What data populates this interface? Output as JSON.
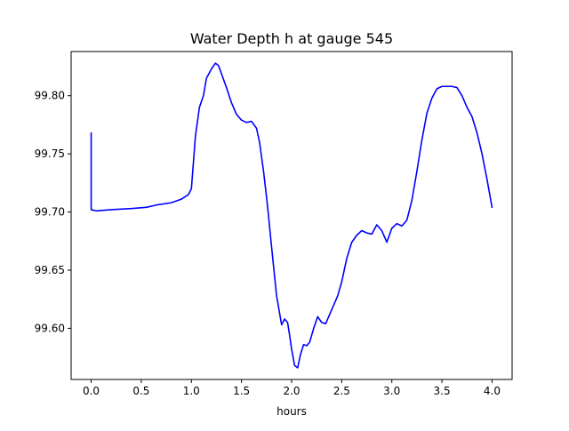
{
  "chart_data": {
    "type": "line",
    "title": "Water Depth h at gauge 545",
    "xlabel": "hours",
    "ylabel": "",
    "xlim": [
      -0.2,
      4.2
    ],
    "ylim": [
      99.556,
      99.838
    ],
    "grid": false,
    "colors": {
      "line": "#0000ff",
      "axes": "#000000",
      "background": "#ffffff"
    },
    "x_ticks": [
      {
        "value": 0.0,
        "label": "0.0"
      },
      {
        "value": 0.5,
        "label": "0.5"
      },
      {
        "value": 1.0,
        "label": "1.0"
      },
      {
        "value": 1.5,
        "label": "1.5"
      },
      {
        "value": 2.0,
        "label": "2.0"
      },
      {
        "value": 2.5,
        "label": "2.5"
      },
      {
        "value": 3.0,
        "label": "3.0"
      },
      {
        "value": 3.5,
        "label": "3.5"
      },
      {
        "value": 4.0,
        "label": "4.0"
      }
    ],
    "y_ticks": [
      {
        "value": 99.6,
        "label": "99.60"
      },
      {
        "value": 99.65,
        "label": "99.65"
      },
      {
        "value": 99.7,
        "label": "99.70"
      },
      {
        "value": 99.75,
        "label": "99.75"
      },
      {
        "value": 99.8,
        "label": "99.80"
      }
    ],
    "series": [
      {
        "color": "#0000ff",
        "x": [
          0.0,
          0.0,
          0.05,
          0.2,
          0.4,
          0.55,
          0.65,
          0.8,
          0.9,
          0.97,
          1.0,
          1.04,
          1.08,
          1.12,
          1.15,
          1.2,
          1.24,
          1.27,
          1.3,
          1.35,
          1.4,
          1.45,
          1.5,
          1.55,
          1.6,
          1.65,
          1.68,
          1.72,
          1.76,
          1.8,
          1.85,
          1.9,
          1.93,
          1.96,
          1.98,
          2.0,
          2.03,
          2.06,
          2.09,
          2.12,
          2.15,
          2.18,
          2.22,
          2.26,
          2.3,
          2.34,
          2.38,
          2.42,
          2.46,
          2.5,
          2.55,
          2.6,
          2.65,
          2.7,
          2.75,
          2.8,
          2.85,
          2.9,
          2.95,
          3.0,
          3.05,
          3.1,
          3.15,
          3.2,
          3.25,
          3.3,
          3.35,
          3.4,
          3.45,
          3.5,
          3.55,
          3.6,
          3.65,
          3.7,
          3.75,
          3.8,
          3.85,
          3.9,
          3.95,
          4.0
        ],
        "y": [
          99.768,
          99.702,
          99.701,
          99.702,
          99.703,
          99.704,
          99.706,
          99.708,
          99.711,
          99.715,
          99.72,
          99.765,
          99.79,
          99.8,
          99.815,
          99.823,
          99.828,
          99.826,
          99.819,
          99.807,
          99.794,
          99.784,
          99.779,
          99.777,
          99.778,
          99.772,
          99.76,
          99.735,
          99.705,
          99.67,
          99.628,
          99.603,
          99.608,
          99.605,
          99.594,
          99.582,
          99.568,
          99.566,
          99.578,
          99.586,
          99.585,
          99.588,
          99.6,
          99.61,
          99.605,
          99.604,
          99.612,
          99.62,
          99.628,
          99.64,
          99.66,
          99.674,
          99.68,
          99.684,
          99.682,
          99.681,
          99.689,
          99.684,
          99.674,
          99.686,
          99.69,
          99.688,
          99.693,
          99.71,
          99.735,
          99.762,
          99.785,
          99.798,
          99.806,
          99.808,
          99.808,
          99.808,
          99.807,
          99.8,
          99.79,
          99.782,
          99.768,
          99.75,
          99.728,
          99.704
        ]
      }
    ]
  }
}
